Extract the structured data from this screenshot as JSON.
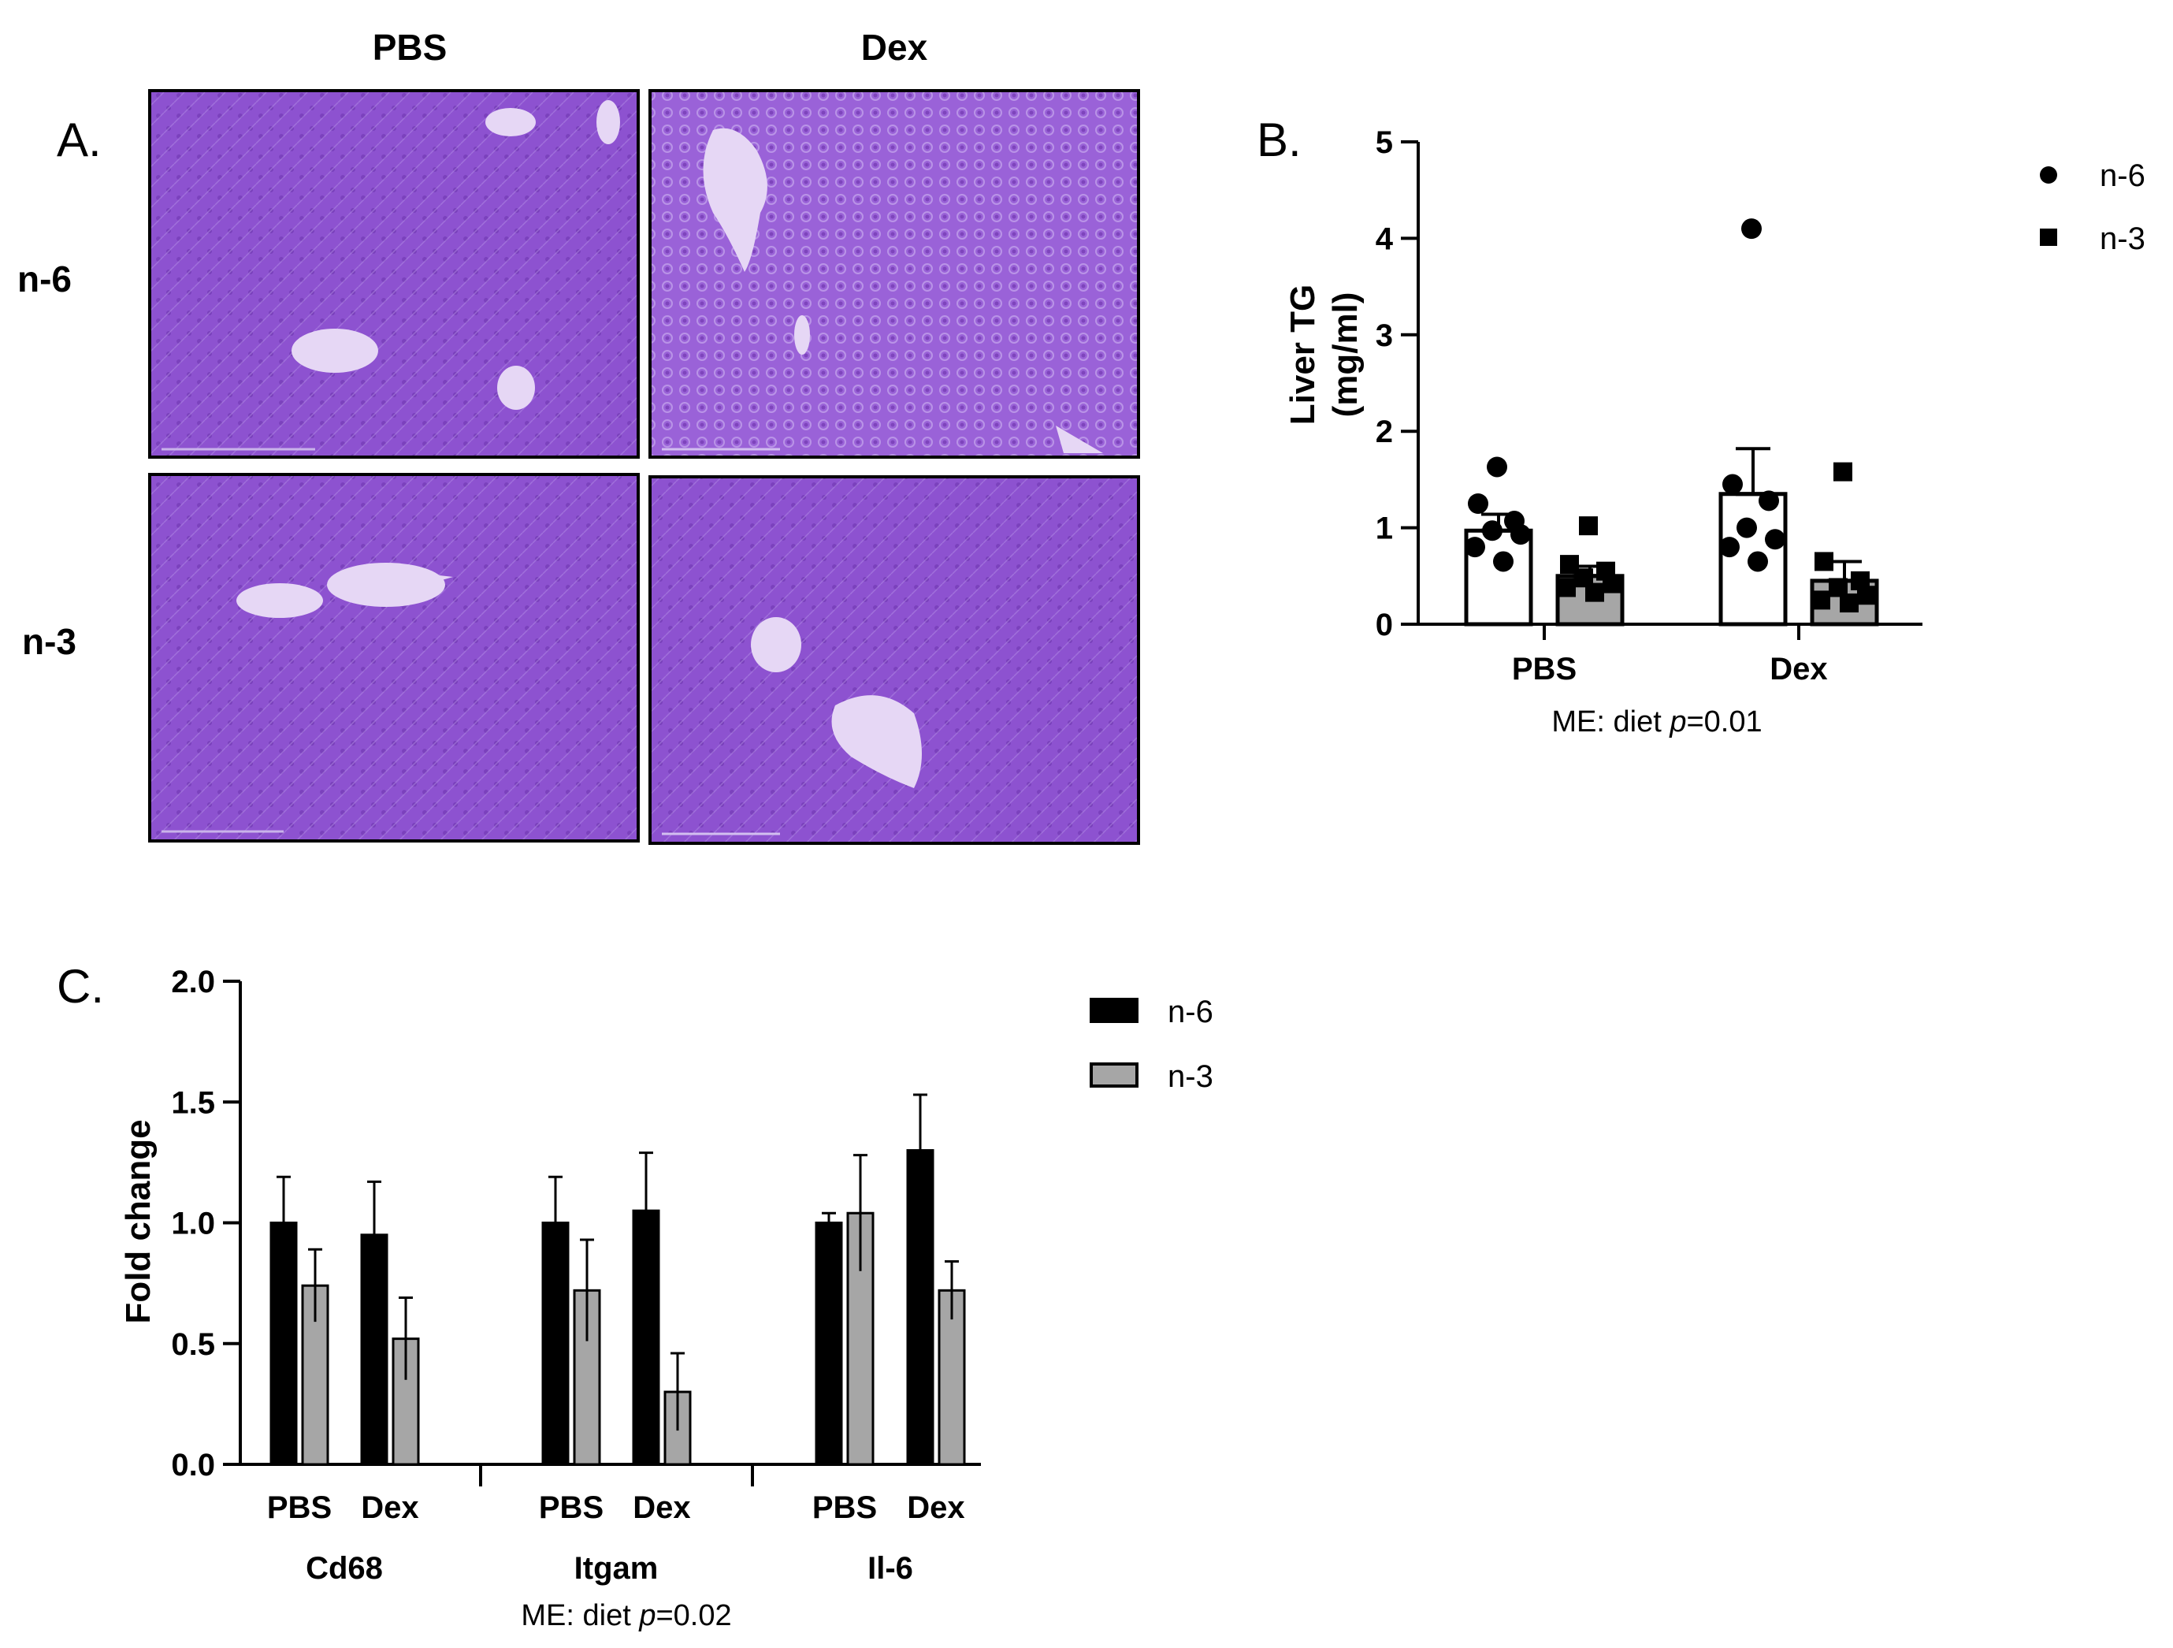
{
  "figure": {
    "panel_labels": {
      "a": "A.",
      "b": "B.",
      "c": "C."
    },
    "micrographs": {
      "column_headers": [
        "PBS",
        "Dex"
      ],
      "row_headers": [
        "n-6",
        "n-3"
      ]
    }
  },
  "chart_data": [
    {
      "panel": "B",
      "type": "bar",
      "categories": [
        "PBS",
        "Dex"
      ],
      "ylabel": [
        "Liver TG",
        "(mg/ml)"
      ],
      "ylim": [
        0,
        5
      ],
      "yticks": [
        "0",
        "1",
        "2",
        "3",
        "4",
        "5"
      ],
      "legend_placement": "top-right",
      "annotation": {
        "prefix": "ME: diet ",
        "italic": "p",
        "suffix": "=0.01"
      },
      "series": [
        {
          "name": "n-6",
          "marker": "circle",
          "fill": "#ffffff",
          "values": [
            0.97,
            1.35
          ],
          "errors": [
            0.17,
            0.47
          ],
          "points": [
            [
              1.63,
              1.25,
              1.07,
              0.97,
              0.93,
              0.8,
              0.65
            ],
            [
              4.1,
              1.45,
              1.28,
              1.0,
              0.88,
              0.8,
              0.65
            ]
          ]
        },
        {
          "name": "n-3",
          "marker": "square",
          "fill": "#a6a6a6",
          "values": [
            0.5,
            0.45
          ],
          "errors": [
            0.1,
            0.2
          ],
          "points": [
            [
              1.02,
              0.62,
              0.55,
              0.48,
              0.42,
              0.38,
              0.33
            ],
            [
              1.58,
              0.65,
              0.45,
              0.38,
              0.3,
              0.25,
              0.22
            ]
          ]
        }
      ]
    },
    {
      "panel": "C",
      "type": "bar",
      "groups": [
        "Cd68",
        "Itgam",
        "Il-6"
      ],
      "subcategories": [
        "PBS",
        "Dex"
      ],
      "ylabel": "Fold change",
      "ylim": [
        0,
        2.0
      ],
      "yticks": [
        "0.0",
        "0.5",
        "1.0",
        "1.5",
        "2.0"
      ],
      "legend_placement": "top-right",
      "annotation": {
        "group": "Itgam",
        "prefix": "ME: diet ",
        "italic": "p",
        "suffix": "=0.02"
      },
      "series": [
        {
          "name": "n-6",
          "color": "#000000",
          "values": [
            1.0,
            0.95,
            1.0,
            1.05,
            1.0,
            1.3
          ],
          "errors": [
            0.19,
            0.22,
            0.19,
            0.24,
            0.04,
            0.23
          ]
        },
        {
          "name": "n-3",
          "color": "#a6a6a6",
          "values": [
            0.74,
            0.52,
            0.72,
            0.3,
            1.04,
            0.72
          ],
          "errors": [
            0.15,
            0.17,
            0.21,
            0.16,
            0.24,
            0.12
          ]
        }
      ]
    }
  ],
  "colors": {
    "tissue": "#8a4fcf",
    "tissue_dark": "#6f36b5",
    "vessel": "#e9dcf5"
  }
}
